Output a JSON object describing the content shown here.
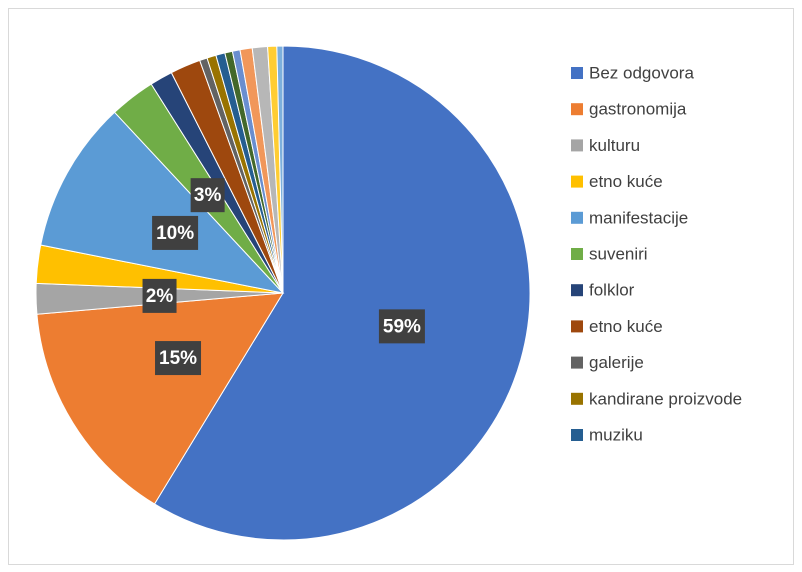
{
  "chart_data": {
    "type": "pie",
    "categories": [
      "Bez odgovora",
      "gastronomija",
      "kulturu",
      "etno kuće",
      "manifestacije",
      "suveniri",
      "folklor",
      "etno kuće",
      "galerije",
      "kandirane proizvode",
      "muziku",
      null,
      null,
      null,
      null,
      null,
      null
    ],
    "values": [
      59,
      15,
      2,
      2.5,
      10,
      3,
      1.5,
      2,
      0.5,
      0.6,
      0.6,
      0.5,
      0.5,
      0.8,
      1,
      0.6,
      0.4
    ],
    "value_labels": [
      "59%",
      "15%",
      "2%",
      null,
      "10%",
      "3%",
      null,
      null,
      null,
      null,
      null,
      null,
      null,
      null,
      null,
      null,
      null
    ],
    "colors": [
      "#4472c4",
      "#ed7d31",
      "#a5a5a5",
      "#ffc000",
      "#5b9bd5",
      "#70ad47",
      "#264478",
      "#9e480e",
      "#636363",
      "#997300",
      "#255e91",
      "#43682b",
      "#698ed0",
      "#f1975a",
      "#b7b7b7",
      "#ffcd33",
      "#7cafdd"
    ],
    "legend": "right"
  }
}
